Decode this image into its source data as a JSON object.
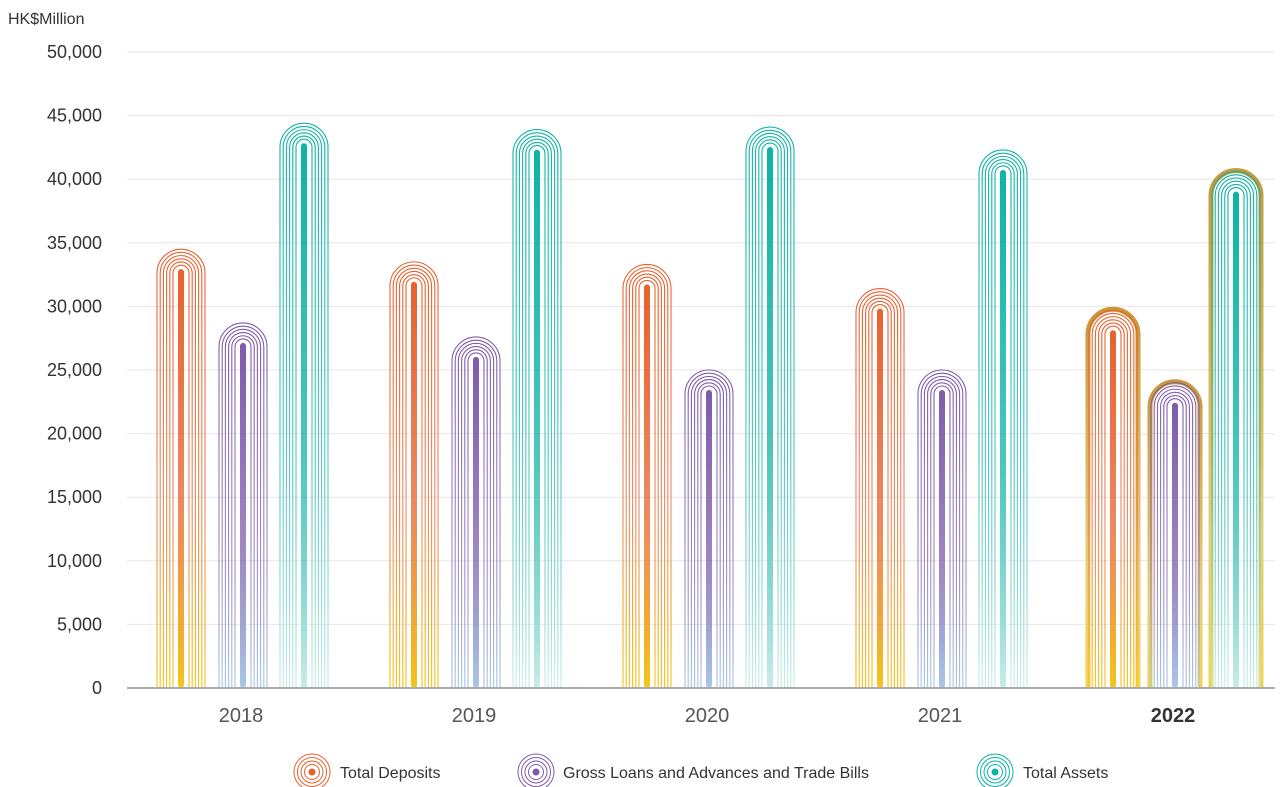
{
  "chart_data": {
    "type": "bar",
    "unit_label": "HK$Million",
    "categories": [
      "2018",
      "2019",
      "2020",
      "2021",
      "2022"
    ],
    "highlight_category": "2022",
    "y_ticks": [
      "0",
      "5,000",
      "10,000",
      "15,000",
      "20,000",
      "25,000",
      "30,000",
      "35,000",
      "40,000",
      "45,000",
      "50,000"
    ],
    "ylim": [
      0,
      50000
    ],
    "grid": true,
    "legend_position": "bottom-center",
    "series": [
      {
        "name": "Total Deposits",
        "values": [
          34500,
          33500,
          33300,
          31400,
          29700
        ],
        "color": "#e8612c",
        "fade_color": "#f5c518"
      },
      {
        "name": "Gross Loans and Advances and Trade Bills",
        "values": [
          28700,
          27600,
          25000,
          25000,
          24000
        ],
        "color": "#7e5bab",
        "fade_color": "#a8c8e8"
      },
      {
        "name": "Total Assets",
        "values": [
          44400,
          43900,
          44100,
          42300,
          40600
        ],
        "color": "#0db3a6",
        "fade_color": "#c8ece8"
      }
    ],
    "highlight_outline_color": "#c9973a"
  }
}
